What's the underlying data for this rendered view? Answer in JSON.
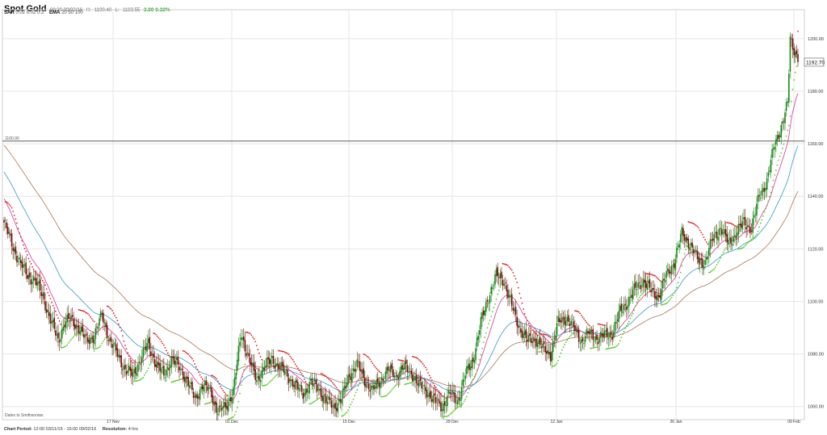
{
  "header": {
    "title": "Spot Gold",
    "timestamp": "08:30 09/02/16",
    "high_label": "H:",
    "high": "1190.40",
    "low_label": "L:",
    "low": "1183.55",
    "change": "3.80 0.32%"
  },
  "indicators": {
    "sar_label": "SAR",
    "sar_values": "0.02  0.02  0.2",
    "ema_label": "EMA",
    "ema_values": "20  50  100"
  },
  "footer": {
    "period_label": "Chart Period:",
    "period_value": "12:00 03/11/15 - 16:00 09/02/16",
    "resolution_label": "Resolution:",
    "resolution_value": "4 hrs"
  },
  "chart_data": {
    "type": "candlestick",
    "title": "Spot Gold",
    "ylim": [
      1055,
      1211
    ],
    "y_ticks": [
      1060,
      1080,
      1100,
      1120,
      1140,
      1160,
      1180,
      1200
    ],
    "y_tick_labels": [
      "1060.00",
      "1080.00",
      "1100.00",
      "1120.00",
      "1140.00",
      "1160.00",
      "1180.00",
      "1200.00"
    ],
    "x_tick_labels": [
      "17 Nov",
      "01 Dec",
      "15 Dec",
      "29 Dec",
      "12 Jan",
      "26 Jan",
      "09 Feb"
    ],
    "reference_line": {
      "value": 1161,
      "label": "1160.90"
    },
    "last_price_label": "1192.70",
    "x_axis_note": "Dates to Smithsonian",
    "grid": true,
    "colors": {
      "up": "#1a8a1a",
      "down": "#7a1010",
      "sar_above": "#dd2222",
      "sar_below": "#55cc22",
      "ema20": "#dd3399",
      "ema50": "#3399cc",
      "ema100": "#aa7755",
      "grid": "#e6e6e6"
    },
    "series": [
      {
        "name": "Spot Gold",
        "close_anchors": [
          [
            0,
            1130
          ],
          [
            6,
            1122
          ],
          [
            12,
            1115
          ],
          [
            18,
            1110
          ],
          [
            24,
            1108
          ],
          [
            30,
            1102
          ],
          [
            36,
            1093
          ],
          [
            42,
            1085
          ],
          [
            47,
            1092
          ],
          [
            52,
            1093
          ],
          [
            58,
            1090
          ],
          [
            64,
            1085
          ],
          [
            70,
            1087
          ],
          [
            76,
            1095
          ],
          [
            82,
            1085
          ],
          [
            88,
            1080
          ],
          [
            94,
            1074
          ],
          [
            100,
            1072
          ],
          [
            106,
            1078
          ],
          [
            112,
            1084
          ],
          [
            118,
            1076
          ],
          [
            124,
            1072
          ],
          [
            130,
            1078
          ],
          [
            136,
            1075
          ],
          [
            142,
            1070
          ],
          [
            148,
            1063
          ],
          [
            154,
            1068
          ],
          [
            160,
            1066
          ],
          [
            166,
            1058
          ],
          [
            172,
            1060
          ],
          [
            178,
            1066
          ],
          [
            184,
            1088
          ],
          [
            190,
            1078
          ],
          [
            196,
            1070
          ],
          [
            202,
            1075
          ],
          [
            208,
            1078
          ],
          [
            214,
            1075
          ],
          [
            220,
            1072
          ],
          [
            226,
            1068
          ],
          [
            232,
            1065
          ],
          [
            238,
            1069
          ],
          [
            244,
            1067
          ],
          [
            250,
            1062
          ],
          [
            256,
            1060
          ],
          [
            262,
            1063
          ],
          [
            268,
            1072
          ],
          [
            274,
            1076
          ],
          [
            280,
            1070
          ],
          [
            286,
            1066
          ],
          [
            292,
            1070
          ],
          [
            298,
            1074
          ],
          [
            304,
            1072
          ],
          [
            310,
            1075
          ],
          [
            316,
            1073
          ],
          [
            322,
            1068
          ],
          [
            328,
            1066
          ],
          [
            334,
            1062
          ],
          [
            340,
            1060
          ],
          [
            346,
            1065
          ],
          [
            352,
            1062
          ],
          [
            358,
            1072
          ],
          [
            364,
            1078
          ],
          [
            370,
            1092
          ],
          [
            376,
            1102
          ],
          [
            382,
            1110
          ],
          [
            388,
            1108
          ],
          [
            394,
            1098
          ],
          [
            400,
            1090
          ],
          [
            406,
            1085
          ],
          [
            412,
            1086
          ],
          [
            418,
            1082
          ],
          [
            424,
            1080
          ],
          [
            430,
            1092
          ],
          [
            436,
            1094
          ],
          [
            442,
            1090
          ],
          [
            448,
            1085
          ],
          [
            454,
            1088
          ],
          [
            460,
            1086
          ],
          [
            466,
            1087
          ],
          [
            472,
            1088
          ],
          [
            478,
            1096
          ],
          [
            484,
            1100
          ],
          [
            490,
            1105
          ],
          [
            496,
            1108
          ],
          [
            502,
            1104
          ],
          [
            508,
            1102
          ],
          [
            514,
            1110
          ],
          [
            520,
            1115
          ],
          [
            526,
            1126
          ],
          [
            532,
            1122
          ],
          [
            538,
            1116
          ],
          [
            544,
            1115
          ],
          [
            550,
            1124
          ],
          [
            556,
            1128
          ],
          [
            562,
            1122
          ],
          [
            568,
            1126
          ],
          [
            574,
            1130
          ],
          [
            580,
            1128
          ],
          [
            586,
            1140
          ],
          [
            592,
            1146
          ],
          [
            598,
            1160
          ],
          [
            604,
            1168
          ],
          [
            608,
            1175
          ],
          [
            610,
            1200
          ],
          [
            613,
            1196
          ],
          [
            616,
            1192.7
          ]
        ]
      }
    ]
  }
}
